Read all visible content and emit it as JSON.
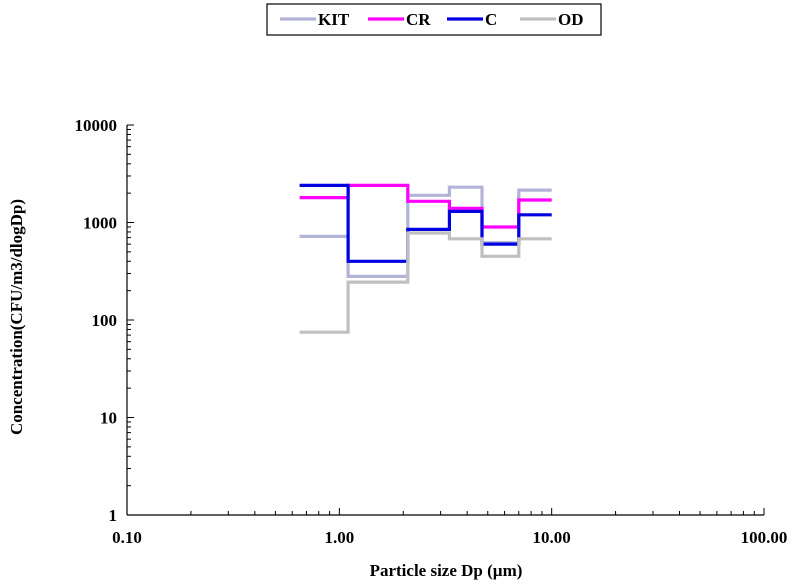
{
  "chart_data": {
    "type": "line",
    "xlabel": "Particle size Dp (µm)",
    "ylabel": "Concentration(CFU/m3/dlogDp)",
    "x_scale": "log",
    "y_scale": "log",
    "xlim": [
      0.1,
      100
    ],
    "ylim": [
      1,
      10000
    ],
    "x_ticks": [
      0.1,
      1,
      10,
      100
    ],
    "x_tick_labels": [
      "0.10",
      "1.00",
      "10.00",
      "100.00"
    ],
    "y_ticks": [
      1,
      10,
      100,
      1000,
      10000
    ],
    "y_tick_labels": [
      "1",
      "10",
      "100",
      "1000",
      "10000"
    ],
    "grid": false,
    "legend_position": "top-center",
    "bin_edges": [
      0.65,
      1.1,
      2.1,
      3.3,
      4.7,
      7.0,
      10.0
    ],
    "series": [
      {
        "name": "KIT",
        "color": "#b3b3d9",
        "values": [
          720,
          280,
          1900,
          2300,
          620,
          2150
        ]
      },
      {
        "name": "CR",
        "color": "#ff00ff",
        "values": [
          1800,
          2400,
          1650,
          1400,
          900,
          1700
        ]
      },
      {
        "name": "C",
        "color": "#0000e0",
        "values": [
          2400,
          400,
          850,
          1300,
          600,
          1200
        ]
      },
      {
        "name": "OD",
        "color": "#c0c0c0",
        "values": [
          75,
          245,
          780,
          680,
          450,
          680
        ]
      }
    ]
  }
}
